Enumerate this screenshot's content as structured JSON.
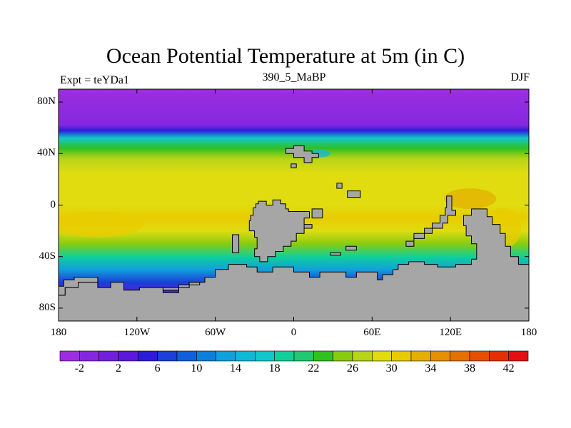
{
  "title": "Ocean Potential Temperature at 5m (in C)",
  "left_label": "Expt = teYDa1",
  "center_label": "390_5_MaBP",
  "right_label": "DJF",
  "lat_ticks": [
    {
      "label": "80N",
      "lat": 80
    },
    {
      "label": "40N",
      "lat": 40
    },
    {
      "label": "0",
      "lat": 0
    },
    {
      "label": "40S",
      "lat": -40
    },
    {
      "label": "80S",
      "lat": -80
    }
  ],
  "lon_ticks": [
    {
      "label": "180",
      "lon": -180
    },
    {
      "label": "120W",
      "lon": -120
    },
    {
      "label": "60W",
      "lon": -60
    },
    {
      "label": "0",
      "lon": 0
    },
    {
      "label": "60E",
      "lon": 60
    },
    {
      "label": "120E",
      "lon": 120
    },
    {
      "label": "180",
      "lon": 180
    }
  ],
  "colorbar": {
    "labels": [
      "-2",
      "2",
      "6",
      "10",
      "14",
      "18",
      "22",
      "26",
      "30",
      "34",
      "38",
      "42"
    ],
    "colors": [
      "#9c2ee0",
      "#8428e0",
      "#7020dc",
      "#5c18dc",
      "#2c1cd8",
      "#1a40d8",
      "#1060dc",
      "#0c80dc",
      "#10a0dc",
      "#10b8d8",
      "#10c8c8",
      "#10d098",
      "#20c870",
      "#30c020",
      "#88cc10",
      "#b8d418",
      "#e0dc10",
      "#e8cc00",
      "#e4b000",
      "#e49000",
      "#e47000",
      "#e45000",
      "#e43000",
      "#e41010"
    ]
  },
  "land_color": "#a6a6a6",
  "lat_range": [
    -90,
    90
  ],
  "lon_range": [
    -180,
    180
  ],
  "temperature_profile_by_lat": [
    {
      "lat": 90,
      "temp": -2.5
    },
    {
      "lat": 62,
      "temp": -2.0
    },
    {
      "lat": 58,
      "temp": 5.0
    },
    {
      "lat": 52,
      "temp": 16.0
    },
    {
      "lat": 44,
      "temp": 22.0
    },
    {
      "lat": 36,
      "temp": 26.0
    },
    {
      "lat": 25,
      "temp": 28.0
    },
    {
      "lat": 10,
      "temp": 28.0
    },
    {
      "lat": 0,
      "temp": 29.0
    },
    {
      "lat": -10,
      "temp": 30.0
    },
    {
      "lat": -20,
      "temp": 28.5
    },
    {
      "lat": -30,
      "temp": 24.0
    },
    {
      "lat": -40,
      "temp": 19.0
    },
    {
      "lat": -50,
      "temp": 13.0
    },
    {
      "lat": -60,
      "temp": 6.0
    },
    {
      "lat": -70,
      "temp": 3.0
    },
    {
      "lat": -90,
      "temp": 1.0
    }
  ],
  "land_polygons": [
    {
      "name": "africa-arabia",
      "coords": [
        [
          -27,
          3
        ],
        [
          -21,
          3
        ],
        [
          -21,
          0
        ],
        [
          -16,
          0
        ],
        [
          -16,
          4
        ],
        [
          -10,
          4
        ],
        [
          -10,
          1
        ],
        [
          -6,
          1
        ],
        [
          -6,
          -3
        ],
        [
          -4,
          -3
        ],
        [
          -4,
          -5
        ],
        [
          12,
          -5
        ],
        [
          12,
          -10
        ],
        [
          8,
          -10
        ],
        [
          8,
          -18
        ],
        [
          14,
          -18
        ],
        [
          14,
          -15
        ],
        [
          8,
          -15
        ],
        [
          8,
          -22
        ],
        [
          2,
          -22
        ],
        [
          2,
          -28
        ],
        [
          -2,
          -28
        ],
        [
          -2,
          -32
        ],
        [
          -8,
          -32
        ],
        [
          -8,
          -36
        ],
        [
          -14,
          -36
        ],
        [
          -14,
          -40
        ],
        [
          -20,
          -40
        ],
        [
          -20,
          -44
        ],
        [
          -26,
          -44
        ],
        [
          -26,
          -40
        ],
        [
          -30,
          -40
        ],
        [
          -30,
          -34
        ],
        [
          -28,
          -34
        ],
        [
          -28,
          -25
        ],
        [
          -30,
          -25
        ],
        [
          -30,
          -20
        ],
        [
          -34,
          -20
        ],
        [
          -34,
          -12
        ],
        [
          -33,
          -12
        ],
        [
          -33,
          -8
        ],
        [
          -31,
          -8
        ],
        [
          -31,
          -2
        ],
        [
          -29,
          -2
        ],
        [
          -29,
          1
        ],
        [
          -27,
          1
        ]
      ]
    },
    {
      "name": "eurasia-north",
      "coords": [
        [
          -6,
          44
        ],
        [
          0,
          44
        ],
        [
          0,
          46
        ],
        [
          8,
          46
        ],
        [
          8,
          42
        ],
        [
          14,
          42
        ],
        [
          14,
          40
        ],
        [
          19,
          40
        ],
        [
          19,
          37
        ],
        [
          14,
          37
        ],
        [
          14,
          33
        ],
        [
          8,
          33
        ],
        [
          8,
          37
        ],
        [
          0,
          37
        ],
        [
          0,
          40
        ],
        [
          -6,
          40
        ]
      ]
    },
    {
      "name": "island-a",
      "coords": [
        [
          -2,
          32
        ],
        [
          2,
          32
        ],
        [
          2,
          29
        ],
        [
          -2,
          29
        ]
      ]
    },
    {
      "name": "island-b",
      "coords": [
        [
          33,
          17
        ],
        [
          37,
          17
        ],
        [
          37,
          13
        ],
        [
          33,
          13
        ]
      ]
    },
    {
      "name": "island-c",
      "coords": [
        [
          41,
          11
        ],
        [
          51,
          11
        ],
        [
          51,
          6
        ],
        [
          41,
          6
        ]
      ]
    },
    {
      "name": "island-d",
      "coords": [
        [
          14,
          -3
        ],
        [
          22,
          -3
        ],
        [
          22,
          -10
        ],
        [
          14,
          -10
        ]
      ]
    },
    {
      "name": "island-e",
      "coords": [
        [
          -47,
          -23
        ],
        [
          -42,
          -23
        ],
        [
          -42,
          -37
        ],
        [
          -47,
          -37
        ]
      ]
    },
    {
      "name": "island-f",
      "coords": [
        [
          40,
          -32
        ],
        [
          48,
          -32
        ],
        [
          48,
          -35
        ],
        [
          40,
          -35
        ]
      ]
    },
    {
      "name": "island-g",
      "coords": [
        [
          28,
          -37
        ],
        [
          36,
          -37
        ],
        [
          36,
          -39
        ],
        [
          28,
          -39
        ]
      ]
    },
    {
      "name": "east-chain",
      "coords": [
        [
          117,
          7
        ],
        [
          121,
          7
        ],
        [
          121,
          -4
        ],
        [
          124,
          -4
        ],
        [
          124,
          -8
        ],
        [
          118,
          -8
        ],
        [
          118,
          -14
        ],
        [
          114,
          -14
        ],
        [
          114,
          -18
        ],
        [
          106,
          -18
        ],
        [
          106,
          -22
        ],
        [
          100,
          -22
        ],
        [
          100,
          -26
        ],
        [
          92,
          -26
        ],
        [
          92,
          -32
        ],
        [
          86,
          -32
        ],
        [
          86,
          -28
        ],
        [
          92,
          -28
        ],
        [
          92,
          -22
        ],
        [
          100,
          -22
        ],
        [
          100,
          -18
        ],
        [
          106,
          -18
        ],
        [
          106,
          -14
        ],
        [
          112,
          -14
        ],
        [
          112,
          -8
        ],
        [
          116,
          -8
        ],
        [
          116,
          -2
        ],
        [
          117,
          -2
        ]
      ]
    },
    {
      "name": "southeast-continent",
      "coords": [
        [
          136,
          -3
        ],
        [
          148,
          -3
        ],
        [
          148,
          -9
        ],
        [
          152,
          -9
        ],
        [
          152,
          -15
        ],
        [
          158,
          -15
        ],
        [
          158,
          -22
        ],
        [
          162,
          -22
        ],
        [
          162,
          -32
        ],
        [
          166,
          -32
        ],
        [
          166,
          -40
        ],
        [
          172,
          -40
        ],
        [
          172,
          -46
        ],
        [
          180,
          -46
        ],
        [
          180,
          -90
        ],
        [
          -180,
          -90
        ],
        [
          -180,
          -70
        ],
        [
          -175,
          -70
        ],
        [
          -175,
          -64
        ],
        [
          -165,
          -64
        ],
        [
          -165,
          -60
        ],
        [
          -150,
          -60
        ],
        [
          -150,
          -64
        ],
        [
          -140,
          -64
        ],
        [
          -140,
          -60
        ],
        [
          -130,
          -60
        ],
        [
          -130,
          -66
        ],
        [
          -118,
          -66
        ],
        [
          -118,
          -64
        ],
        [
          -100,
          -64
        ],
        [
          -100,
          -68
        ],
        [
          -88,
          -68
        ],
        [
          -88,
          -64
        ],
        [
          -80,
          -64
        ],
        [
          -80,
          -60
        ],
        [
          -68,
          -60
        ],
        [
          -68,
          -56
        ],
        [
          -60,
          -56
        ],
        [
          -60,
          -50
        ],
        [
          -50,
          -50
        ],
        [
          -50,
          -46
        ],
        [
          -36,
          -46
        ],
        [
          -36,
          -48
        ],
        [
          -28,
          -48
        ],
        [
          -28,
          -52
        ],
        [
          -16,
          -52
        ],
        [
          -16,
          -48
        ],
        [
          0,
          -48
        ],
        [
          0,
          -52
        ],
        [
          12,
          -52
        ],
        [
          12,
          -56
        ],
        [
          20,
          -56
        ],
        [
          20,
          -52
        ],
        [
          40,
          -52
        ],
        [
          40,
          -56
        ],
        [
          48,
          -56
        ],
        [
          48,
          -52
        ],
        [
          64,
          -52
        ],
        [
          64,
          -58
        ],
        [
          68,
          -58
        ],
        [
          68,
          -54
        ],
        [
          76,
          -54
        ],
        [
          76,
          -50
        ],
        [
          80,
          -50
        ],
        [
          80,
          -46
        ],
        [
          88,
          -46
        ],
        [
          88,
          -44
        ],
        [
          100,
          -44
        ],
        [
          100,
          -46
        ],
        [
          110,
          -46
        ],
        [
          110,
          -48
        ],
        [
          124,
          -48
        ],
        [
          124,
          -46
        ],
        [
          136,
          -46
        ],
        [
          136,
          -42
        ],
        [
          140,
          -42
        ],
        [
          140,
          -30
        ],
        [
          136,
          -30
        ],
        [
          136,
          -24
        ],
        [
          132,
          -24
        ],
        [
          132,
          -16
        ],
        [
          130,
          -16
        ],
        [
          130,
          -8
        ],
        [
          136,
          -8
        ]
      ]
    },
    {
      "name": "west-antarctic-strip",
      "coords": [
        [
          -180,
          -63
        ],
        [
          -176,
          -63
        ],
        [
          -176,
          -58
        ],
        [
          -168,
          -58
        ],
        [
          -168,
          -56
        ],
        [
          -150,
          -56
        ],
        [
          -150,
          -60
        ],
        [
          -165,
          -60
        ],
        [
          -165,
          -64
        ],
        [
          -175,
          -64
        ],
        [
          -175,
          -70
        ],
        [
          -180,
          -70
        ]
      ]
    },
    {
      "name": "antarctic-tongue",
      "coords": [
        [
          -100,
          -64
        ],
        [
          -80,
          -64
        ],
        [
          -80,
          -60
        ],
        [
          -72,
          -60
        ],
        [
          -72,
          -62
        ],
        [
          -88,
          -62
        ],
        [
          -88,
          -66
        ],
        [
          -100,
          -66
        ]
      ]
    }
  ]
}
